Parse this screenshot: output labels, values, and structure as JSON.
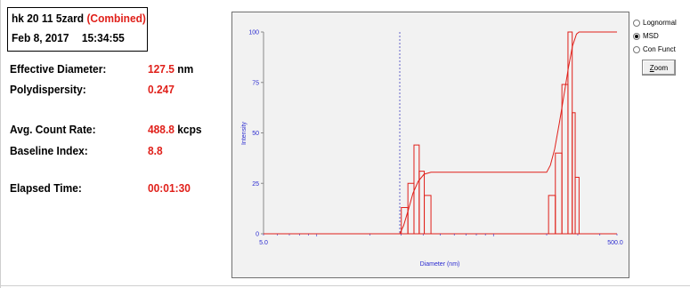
{
  "header": {
    "sample_name": "hk 20 11 5zard",
    "combined_tag": "(Combined)",
    "date": "Feb 8, 2017",
    "time": "15:34:55"
  },
  "stats": [
    {
      "label": "Effective Diameter:",
      "value": "127.5",
      "unit": "nm"
    },
    {
      "label": "Polydispersity:",
      "value": "0.247",
      "unit": ""
    },
    {
      "label": "Avg. Count Rate:",
      "value": "488.8",
      "unit": "kcps"
    },
    {
      "label": "Baseline Index:",
      "value": "8.8",
      "unit": ""
    },
    {
      "label": "Elapsed Time:",
      "value": "00:01:30",
      "unit": ""
    }
  ],
  "options": {
    "radios": [
      {
        "label": "Lognormal",
        "checked": false
      },
      {
        "label": "MSD",
        "checked": true
      },
      {
        "label": "Con Funct",
        "checked": false
      }
    ],
    "zoom_first": "Z",
    "zoom_rest": "oom"
  },
  "colors": {
    "accent_red": "#e0201a",
    "axis_blue": "#2b2bd0",
    "chart_bg": "#f2f2f2"
  },
  "chart_data": {
    "type": "bar",
    "title": "",
    "xlabel": "Diameter (nm)",
    "ylabel": "Intensity",
    "x_scale": "log",
    "xlim": [
      5.0,
      500.0
    ],
    "ylim": [
      0,
      100
    ],
    "x_tick_labels": [
      "5.0",
      "500.0"
    ],
    "y_ticks": [
      0,
      25,
      50,
      75,
      100
    ],
    "y_tick_labels": [
      "0",
      "25",
      "50",
      "75",
      "100"
    ],
    "grid": false,
    "legend": "none",
    "series": [
      {
        "kind": "bars",
        "bars": [
          {
            "x0": 30.1,
            "x1": 32.8,
            "y": 13
          },
          {
            "x0": 32.8,
            "x1": 35.5,
            "y": 25
          },
          {
            "x0": 35.5,
            "x1": 38.0,
            "y": 44
          },
          {
            "x0": 38.0,
            "x1": 40.6,
            "y": 31
          },
          {
            "x0": 40.6,
            "x1": 44.3,
            "y": 19
          },
          {
            "x0": 205,
            "x1": 224,
            "y": 19
          },
          {
            "x0": 224,
            "x1": 244,
            "y": 40
          },
          {
            "x0": 244,
            "x1": 264,
            "y": 74
          },
          {
            "x0": 264,
            "x1": 279,
            "y": 100
          },
          {
            "x0": 279,
            "x1": 290,
            "y": 60
          },
          {
            "x0": 290,
            "x1": 305,
            "y": 28
          }
        ]
      },
      {
        "kind": "cumulative_line",
        "points": [
          [
            5.0,
            0
          ],
          [
            29.5,
            0
          ],
          [
            31,
            4
          ],
          [
            33,
            12
          ],
          [
            35,
            20
          ],
          [
            37.5,
            26
          ],
          [
            40.5,
            29.5
          ],
          [
            44.3,
            30.5
          ],
          [
            200,
            30.5
          ],
          [
            210,
            34
          ],
          [
            222,
            42
          ],
          [
            236,
            55
          ],
          [
            250,
            68
          ],
          [
            265,
            82
          ],
          [
            280,
            93
          ],
          [
            295,
            99
          ],
          [
            305,
            100
          ],
          [
            500,
            100
          ]
        ]
      },
      {
        "kind": "dashed_vertical",
        "x": 29.5
      }
    ]
  }
}
